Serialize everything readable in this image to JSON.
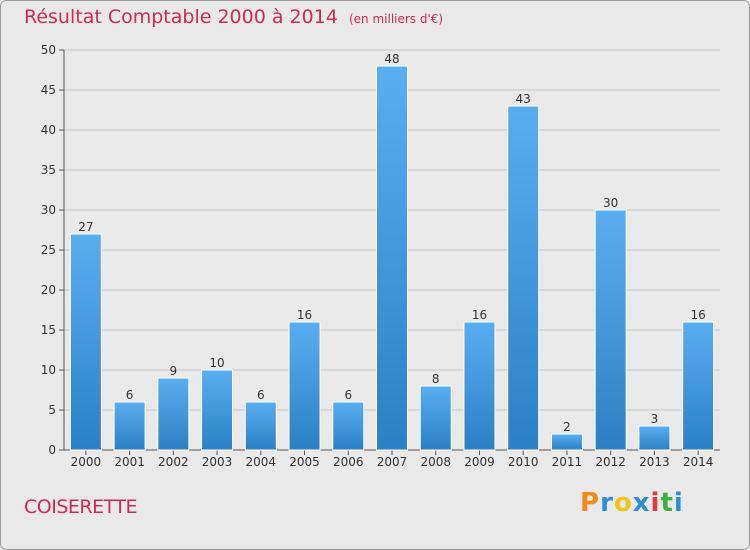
{
  "chart_data": {
    "type": "bar",
    "title": "Résultat Comptable 2000 à 2014",
    "unit_label": "(en milliers d'€)",
    "categories": [
      "2000",
      "2001",
      "2002",
      "2003",
      "2004",
      "2005",
      "2006",
      "2007",
      "2008",
      "2009",
      "2010",
      "2011",
      "2012",
      "2013",
      "2014"
    ],
    "values": [
      27,
      6,
      9,
      10,
      6,
      16,
      6,
      48,
      8,
      16,
      43,
      2,
      30,
      3,
      16
    ],
    "ylim": [
      0,
      50
    ],
    "yticks": [
      0,
      5,
      10,
      15,
      20,
      25,
      30,
      35,
      40,
      45,
      50
    ],
    "xlabel": "",
    "ylabel": "",
    "grid": true,
    "bar_color_top": "#5aaef0",
    "bar_color_bottom": "#2b7fc4"
  },
  "footer": {
    "commune": "COISERETTE"
  },
  "logo": {
    "letters": [
      "P",
      "r",
      "o",
      "x",
      "i",
      "t",
      "i"
    ],
    "colors": [
      "#f08c1e",
      "#2c8fd6",
      "#f0c419",
      "#2c8fd6",
      "#e23a3a",
      "#3fae49",
      "#2c8fd6"
    ]
  },
  "colors": {
    "accent": "#cc2a57",
    "background": "#e9e9e9",
    "grid": "#c8c8c8"
  }
}
